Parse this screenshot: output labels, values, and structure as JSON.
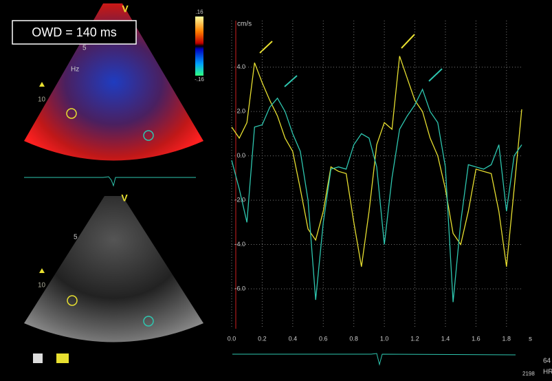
{
  "overlay_label": "OWD = 140 ms",
  "color_scale": {
    "max_label": ".16",
    "min_label": "-.16"
  },
  "doppler_view": {
    "marker": "V",
    "depth_labels": [
      "5",
      "10"
    ],
    "unit_label": "Hz"
  },
  "bmode_view": {
    "marker": "V",
    "depth_labels": [
      "5",
      "10"
    ]
  },
  "status": {
    "hr_value": "64",
    "hr_label": "HR",
    "frame": "2198"
  },
  "chart_data": {
    "type": "line",
    "y_unit": "cm/s",
    "x_unit": "s",
    "xlim": [
      0,
      1.9
    ],
    "ylim": [
      -7.8,
      6.1
    ],
    "xticks": [
      {
        "value": 0,
        "label": "0.0"
      },
      0.2,
      0.4,
      0.6,
      0.8,
      {
        "value": 1,
        "label": "1.0"
      },
      1.2,
      1.4,
      1.6,
      1.8
    ],
    "yticks": [
      {
        "value": 4,
        "label": "4.0"
      },
      {
        "value": 2,
        "label": "2.0"
      },
      {
        "value": 0,
        "label": "0.0"
      },
      {
        "value": -2,
        "label": "-2.0"
      },
      {
        "value": -4,
        "label": "-4.0"
      },
      {
        "value": -6,
        "label": "-6.0"
      }
    ],
    "grid": true,
    "x": [
      0,
      0.05,
      0.1,
      0.15,
      0.2,
      0.25,
      0.3,
      0.35,
      0.4,
      0.45,
      0.5,
      0.55,
      0.6,
      0.65,
      0.7,
      0.75,
      0.8,
      0.85,
      0.9,
      0.95,
      1.0,
      1.05,
      1.1,
      1.15,
      1.2,
      1.25,
      1.3,
      1.35,
      1.4,
      1.45,
      1.5,
      1.55,
      1.6,
      1.65,
      1.7,
      1.75,
      1.8,
      1.85,
      1.9
    ],
    "series": [
      {
        "color": "#e8e030",
        "values": [
          1.3,
          0.8,
          1.5,
          4.2,
          3.3,
          2.5,
          1.8,
          0.8,
          0.2,
          -1.5,
          -3.3,
          -3.8,
          -2.5,
          -0.5,
          -0.7,
          -0.8,
          -3.0,
          -5.0,
          -2.5,
          0.5,
          1.5,
          1.2,
          4.5,
          3.5,
          2.5,
          2.0,
          0.8,
          0.0,
          -1.5,
          -3.5,
          -4.0,
          -2.5,
          -0.6,
          -0.7,
          -0.8,
          -2.5,
          -5.0,
          -1.5,
          2.1
        ]
      },
      {
        "color": "#2ec7b0",
        "values": [
          -0.2,
          -1.5,
          -3.0,
          1.3,
          1.4,
          2.2,
          2.6,
          2.0,
          1.0,
          0.2,
          -2.0,
          -6.5,
          -3.0,
          -0.6,
          -0.5,
          -0.6,
          0.5,
          1.0,
          0.8,
          -0.5,
          -4.0,
          -1.0,
          1.2,
          1.8,
          2.3,
          3.0,
          2.0,
          1.5,
          -0.5,
          -6.6,
          -3.0,
          -0.4,
          -0.5,
          -0.6,
          -0.4,
          0.5,
          -2.5,
          0.0,
          0.5
        ]
      }
    ]
  }
}
